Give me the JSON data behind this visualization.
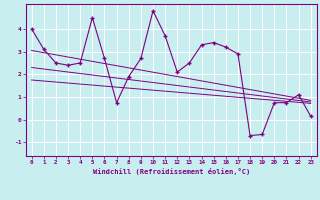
{
  "xlabel": "Windchill (Refroidissement éolien,°C)",
  "bg_color": "#c8eef0",
  "line_color": "#800080",
  "grid_color": "#ffffff",
  "spine_color": "#800080",
  "xlim": [
    -0.5,
    23.5
  ],
  "ylim": [
    -1.6,
    5.1
  ],
  "yticks": [
    -1,
    0,
    1,
    2,
    3,
    4
  ],
  "xticks": [
    0,
    1,
    2,
    3,
    4,
    5,
    6,
    7,
    8,
    9,
    10,
    11,
    12,
    13,
    14,
    15,
    16,
    17,
    18,
    19,
    20,
    21,
    22,
    23
  ],
  "main_y": [
    4.0,
    3.1,
    2.5,
    2.4,
    2.5,
    4.5,
    2.7,
    0.75,
    1.9,
    2.7,
    4.8,
    3.7,
    2.1,
    2.5,
    3.3,
    3.4,
    3.2,
    2.9,
    -0.7,
    -0.65,
    0.75,
    0.75,
    1.1,
    0.15
  ],
  "line1_x": [
    0,
    23
  ],
  "line1_y": [
    3.05,
    0.85
  ],
  "line2_x": [
    0,
    23
  ],
  "line2_y": [
    1.75,
    0.72
  ],
  "line3_x": [
    0,
    23
  ],
  "line3_y": [
    2.3,
    0.78
  ]
}
